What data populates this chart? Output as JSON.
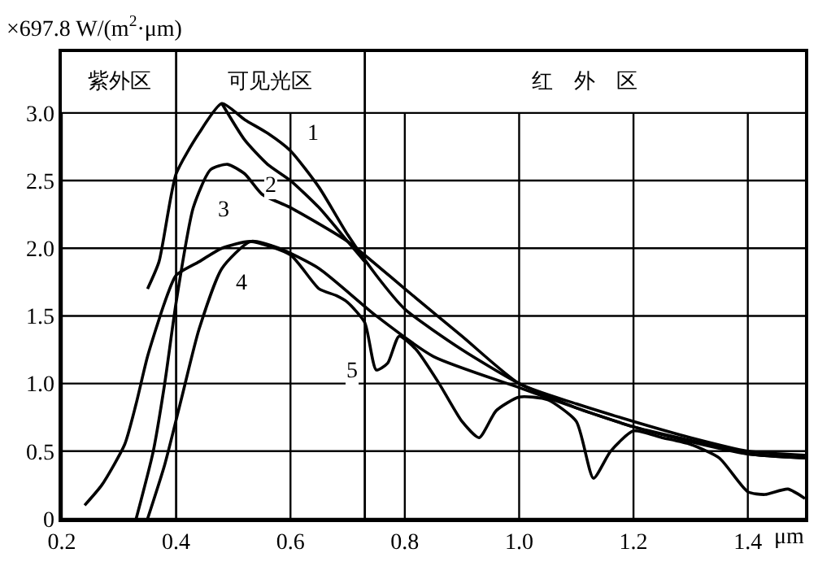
{
  "chart_data": {
    "type": "line",
    "ylabel": "×697.8 W/(m$^{2}$·μm)",
    "xlabel": "μm",
    "xlim": [
      0.2,
      1.5
    ],
    "ylim": [
      0,
      3.45
    ],
    "xticks": [
      0.2,
      0.4,
      0.6,
      0.8,
      {
        "value": 1,
        "label": "1.0"
      },
      1.2,
      1.4
    ],
    "yticks": [
      {
        "value": 0,
        "label": "0"
      },
      0.5,
      {
        "value": 1,
        "label": "1.0"
      },
      1.5,
      {
        "value": 2,
        "label": "2.0"
      },
      2.5,
      {
        "value": 3,
        "label": "3.0"
      }
    ],
    "grid": true,
    "legend": false,
    "marker": "none",
    "line_style": "solid",
    "ref_lines": [
      {
        "axis": "x",
        "value": 0.4
      },
      {
        "axis": "x",
        "value": 0.73
      }
    ],
    "annotations": [
      "紫外区",
      "可见光区",
      "红　外　区"
    ],
    "series": [
      {
        "name": "1",
        "color": "#000000",
        "x": [
          0.35,
          0.37,
          0.4,
          0.44,
          0.48,
          0.52,
          0.56,
          0.6,
          0.65,
          0.7,
          0.75,
          0.8,
          0.9,
          1.0,
          1.1,
          1.2,
          1.3,
          1.4,
          1.5
        ],
        "values": [
          1.7,
          1.9,
          2.55,
          2.85,
          3.07,
          2.95,
          2.85,
          2.72,
          2.45,
          2.1,
          1.8,
          1.55,
          1.25,
          1.0,
          0.82,
          0.68,
          0.57,
          0.48,
          0.45
        ]
      },
      {
        "name": "2",
        "color": "#000000",
        "x": [
          0.48,
          0.52,
          0.56,
          0.6,
          0.65,
          0.7,
          0.73
        ],
        "values": [
          3.07,
          2.8,
          2.62,
          2.5,
          2.3,
          2.05,
          1.9
        ]
      },
      {
        "name": "3",
        "color": "#000000",
        "x": [
          0.33,
          0.36,
          0.38,
          0.4,
          0.43,
          0.46,
          0.49,
          0.52,
          0.55,
          0.6,
          0.7,
          0.8,
          0.9,
          1.0,
          1.1,
          1.2,
          1.3,
          1.4,
          1.5
        ],
        "values": [
          0,
          0.5,
          1.0,
          1.6,
          2.3,
          2.58,
          2.62,
          2.55,
          2.4,
          2.3,
          2.05,
          1.7,
          1.35,
          1.0,
          0.85,
          0.72,
          0.6,
          0.5,
          0.47
        ]
      },
      {
        "name": "4",
        "color": "#000000",
        "x": [
          0.35,
          0.38,
          0.41,
          0.44,
          0.48,
          0.53,
          0.58,
          0.65,
          0.75,
          0.85,
          1.0,
          1.1,
          1.2,
          1.3,
          1.4,
          1.5
        ],
        "values": [
          0,
          0.4,
          0.9,
          1.4,
          1.85,
          2.05,
          2.0,
          1.85,
          1.5,
          1.2,
          0.97,
          0.82,
          0.68,
          0.58,
          0.48,
          0.45
        ]
      },
      {
        "name": "5",
        "color": "#000000",
        "x": [
          0.24,
          0.27,
          0.31,
          0.33,
          0.35,
          0.38,
          0.4,
          0.44,
          0.48,
          0.53,
          0.6,
          0.65,
          0.68,
          0.7,
          0.73,
          0.75,
          0.77,
          0.79,
          0.82,
          0.86,
          0.9,
          0.93,
          0.96,
          1.0,
          1.05,
          1.1,
          1.13,
          1.16,
          1.2,
          1.25,
          1.3,
          1.35,
          1.4,
          1.43,
          1.47,
          1.5
        ],
        "values": [
          0.1,
          0.25,
          0.55,
          0.85,
          1.2,
          1.6,
          1.8,
          1.9,
          2.0,
          2.05,
          1.95,
          1.7,
          1.65,
          1.6,
          1.45,
          1.1,
          1.15,
          1.35,
          1.25,
          1.0,
          0.72,
          0.6,
          0.8,
          0.9,
          0.88,
          0.72,
          0.3,
          0.5,
          0.65,
          0.6,
          0.55,
          0.45,
          0.2,
          0.18,
          0.22,
          0.15
        ]
      }
    ]
  }
}
